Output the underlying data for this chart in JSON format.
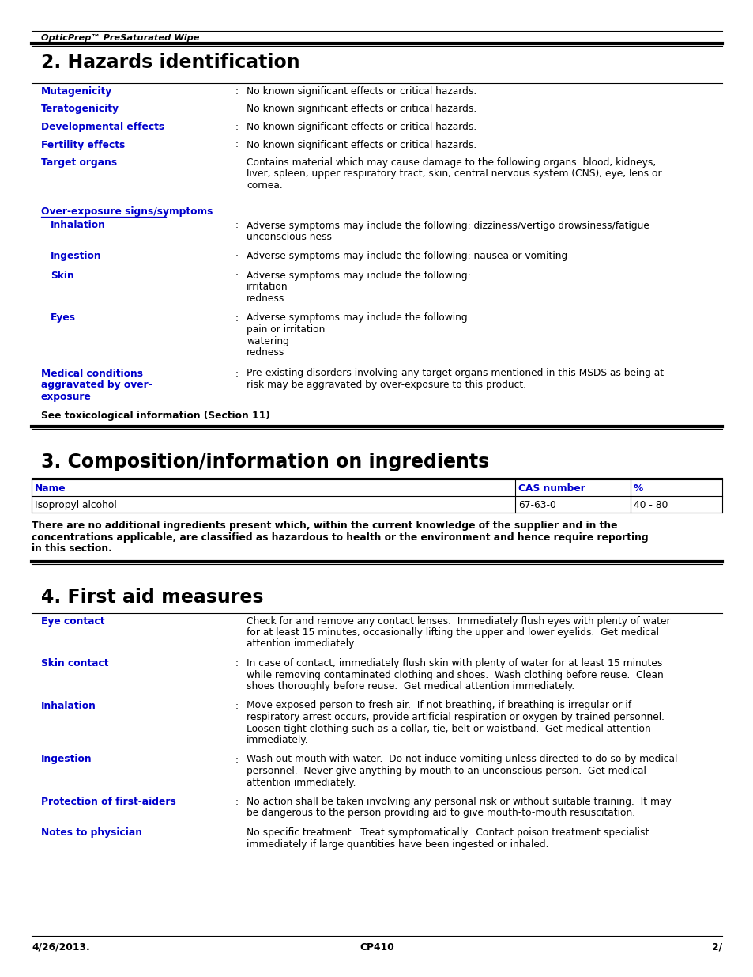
{
  "bg_color": "#ffffff",
  "header_italic": "OpticPrep™ PreSaturated Wipe",
  "section2_title": "2. Hazards identification",
  "section3_title": "3. Composition/information on ingredients",
  "section4_title": "4. First aid measures",
  "blue_color": "#0000cc",
  "black_color": "#000000",
  "footer_left": "4/26/2013.",
  "footer_center": "CP410",
  "footer_right": "2/",
  "section2_items": [
    {
      "label": "Mutagenicity",
      "text": "No known significant effects or critical hazards."
    },
    {
      "label": "Teratogenicity",
      "text": "No known significant effects or critical hazards."
    },
    {
      "label": "Developmental effects",
      "text": "No known significant effects or critical hazards."
    },
    {
      "label": "Fertility effects",
      "text": "No known significant effects or critical hazards."
    },
    {
      "label": "Target organs",
      "text": "Contains material which may cause damage to the following organs: blood, kidneys,\nliver, spleen, upper respiratory tract, skin, central nervous system (CNS), eye, lens or\ncornea."
    }
  ],
  "over_exposure_label": "Over-exposure signs/symptoms",
  "over_exposure_items": [
    {
      "label": "Inhalation",
      "text": "Adverse symptoms may include the following: dizziness/vertigo drowsiness/fatigue\nunconscious ness"
    },
    {
      "label": "Ingestion",
      "text": "Adverse symptoms may include the following: nausea or vomiting"
    },
    {
      "label": "Skin",
      "text": "Adverse symptoms may include the following:\nirritation\nredness"
    },
    {
      "label": "Eyes",
      "text": "Adverse symptoms may include the following:\npain or irritation\nwatering\nredness"
    }
  ],
  "medical_label": "Medical conditions\naggravated by over-\nexposure",
  "medical_text": "Pre-existing disorders involving any target organs mentioned in this MSDS as being at\nrisk may be aggravated by over-exposure to this product.",
  "see_toxico": "See toxicological information (Section 11)",
  "table_headers": [
    "Name",
    "CAS number",
    "%"
  ],
  "table_row": [
    "Isopropyl alcohol",
    "67-63-0",
    "40 - 80"
  ],
  "table_note": "There are no additional ingredients present which, within the current knowledge of the supplier and in the\nconcentrations applicable, are classified as hazardous to health or the environment and hence require reporting\nin this section.",
  "section4_items": [
    {
      "label": "Eye contact",
      "text": "Check for and remove any contact lenses.  Immediately flush eyes with plenty of water\nfor at least 15 minutes, occasionally lifting the upper and lower eyelids.  Get medical\nattention immediately."
    },
    {
      "label": "Skin contact",
      "text": "In case of contact, immediately flush skin with plenty of water for at least 15 minutes\nwhile removing contaminated clothing and shoes.  Wash clothing before reuse.  Clean\nshoes thoroughly before reuse.  Get medical attention immediately."
    },
    {
      "label": "Inhalation",
      "text": "Move exposed person to fresh air.  If not breathing, if breathing is irregular or if\nrespiratory arrest occurs, provide artificial respiration or oxygen by trained personnel.\nLoosen tight clothing such as a collar, tie, belt or waistband.  Get medical attention\nimmediately."
    },
    {
      "label": "Ingestion",
      "text": "Wash out mouth with water.  Do not induce vomiting unless directed to do so by medical\npersonnel.  Never give anything by mouth to an unconscious person.  Get medical\nattention immediately."
    },
    {
      "label": "Protection of first-aiders",
      "text": "No action shall be taken involving any personal risk or without suitable training.  It may\nbe dangerous to the person providing aid to give mouth-to-mouth resuscitation."
    },
    {
      "label": "Notes to physician",
      "text": "No specific treatment.  Treat symptomatically.  Contact poison treatment specialist\nimmediately if large quantities have been ingested or inhaled."
    }
  ]
}
